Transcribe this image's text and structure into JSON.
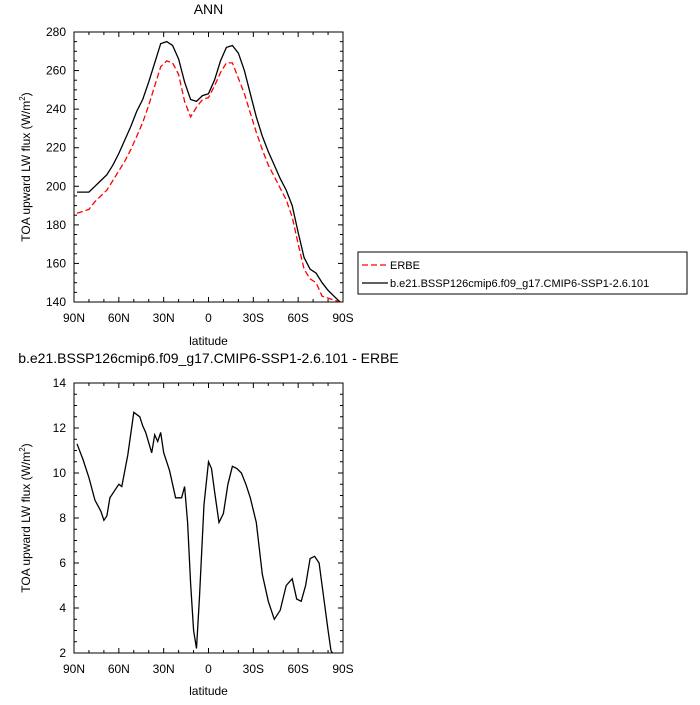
{
  "chart_data": [
    {
      "type": "line",
      "title": "ANN",
      "xlabel": "latitude",
      "ylabel": "TOA upward LW flux (W/m",
      "ylabel_sup": "2",
      "ylabel_end": ")",
      "xlim": [
        90,
        -90
      ],
      "ylim": [
        140,
        280
      ],
      "xticks": [
        90,
        60,
        30,
        0,
        -30,
        -60,
        -90
      ],
      "xtick_labels": [
        "90N",
        "60N",
        "30N",
        "0",
        "30S",
        "60S",
        "90S"
      ],
      "yticks": [
        140,
        160,
        180,
        200,
        220,
        240,
        260,
        280
      ],
      "ytick_labels": [
        "140",
        "160",
        "180",
        "200",
        "220",
        "240",
        "260",
        "280"
      ],
      "legend_position": "right",
      "series": [
        {
          "name": "ERBE",
          "color": "#ff0000",
          "dash": "dashed",
          "x": [
            88,
            84,
            80,
            76,
            72,
            68,
            64,
            60,
            56,
            52,
            48,
            44,
            40,
            36,
            32,
            28,
            24,
            20,
            16,
            12,
            8,
            4,
            0,
            -4,
            -8,
            -12,
            -16,
            -20,
            -24,
            -28,
            -32,
            -36,
            -40,
            -44,
            -48,
            -52,
            -56,
            -60,
            -64,
            -68,
            -72,
            -76,
            -80,
            -84,
            -88
          ],
          "y": [
            186,
            187,
            188,
            192,
            195,
            198,
            203,
            208,
            213,
            219,
            226,
            233,
            242,
            252,
            262,
            265,
            264,
            258,
            244,
            236,
            241,
            245,
            246,
            252,
            259,
            264,
            264,
            256,
            248,
            238,
            228,
            219,
            211,
            205,
            199,
            193,
            184,
            170,
            157,
            152,
            150,
            143,
            142,
            141,
            140
          ]
        },
        {
          "name": "b.e21.BSSP126cmip6.f09_g17.CMIP6-SSP1-2.6.101",
          "color": "#000000",
          "dash": "solid",
          "x": [
            88,
            84,
            80,
            76,
            72,
            68,
            64,
            60,
            56,
            52,
            48,
            44,
            40,
            36,
            32,
            28,
            24,
            20,
            16,
            12,
            8,
            4,
            0,
            -4,
            -8,
            -12,
            -16,
            -20,
            -24,
            -28,
            -32,
            -36,
            -40,
            -44,
            -48,
            -52,
            -56,
            -60,
            -64,
            -68,
            -72,
            -76,
            -80,
            -84,
            -88
          ],
          "y": [
            197,
            197,
            197,
            200,
            203,
            206,
            211,
            217,
            224,
            231,
            239,
            245,
            254,
            264,
            274,
            275,
            273,
            266,
            254,
            245,
            244,
            247,
            248,
            255,
            265,
            272,
            273,
            269,
            260,
            248,
            236,
            226,
            218,
            211,
            204,
            198,
            190,
            176,
            163,
            157,
            155,
            150,
            146,
            143,
            140
          ]
        }
      ]
    },
    {
      "type": "line",
      "title": "b.e21.BSSP126cmip6.f09_g17.CMIP6-SSP1-2.6.101 - ERBE",
      "xlabel": "latitude",
      "ylabel": "TOA upward LW flux (W/m",
      "ylabel_sup": "2",
      "ylabel_end": ")",
      "xlim": [
        90,
        -90
      ],
      "ylim": [
        2,
        14
      ],
      "xticks": [
        90,
        60,
        30,
        0,
        -30,
        -60,
        -90
      ],
      "xtick_labels": [
        "90N",
        "60N",
        "30N",
        "0",
        "30S",
        "60S",
        "90S"
      ],
      "yticks": [
        2,
        4,
        6,
        8,
        10,
        12,
        14
      ],
      "ytick_labels": [
        "2",
        "4",
        "6",
        "8",
        "10",
        "12",
        "14"
      ],
      "series": [
        {
          "color": "#000000",
          "dash": "solid",
          "x": [
            88,
            84,
            80,
            76,
            72,
            70,
            68,
            66,
            62,
            60,
            58,
            54,
            50,
            46,
            44,
            42,
            38,
            36,
            34,
            32,
            30,
            28,
            26,
            22,
            18,
            16,
            14,
            12,
            10,
            8,
            6,
            3,
            0,
            -2,
            -4,
            -7,
            -10,
            -13,
            -16,
            -19,
            -22,
            -25,
            -28,
            -32,
            -36,
            -40,
            -44,
            -48,
            -52,
            -56,
            -59,
            -62,
            -65,
            -68,
            -71,
            -74,
            -77,
            -80,
            -82,
            -84,
            -86,
            -88
          ],
          "y": [
            11.3,
            10.6,
            9.8,
            8.8,
            8.3,
            7.9,
            8.1,
            8.9,
            9.3,
            9.5,
            9.4,
            10.8,
            12.7,
            12.5,
            12.1,
            11.8,
            10.9,
            11.7,
            11.4,
            11.8,
            10.9,
            10.5,
            10.1,
            8.9,
            8.9,
            9.4,
            7.8,
            5.1,
            3.0,
            2.2,
            4.5,
            8.6,
            10.5,
            10.2,
            9.2,
            7.8,
            8.2,
            9.5,
            10.3,
            10.2,
            10.0,
            9.5,
            8.9,
            7.8,
            5.5,
            4.3,
            3.5,
            3.9,
            5.0,
            5.3,
            4.4,
            4.3,
            5.0,
            6.2,
            6.3,
            6.0,
            4.5,
            3.0,
            2.1,
            1.9,
            1.6,
            1.4
          ]
        }
      ]
    }
  ]
}
